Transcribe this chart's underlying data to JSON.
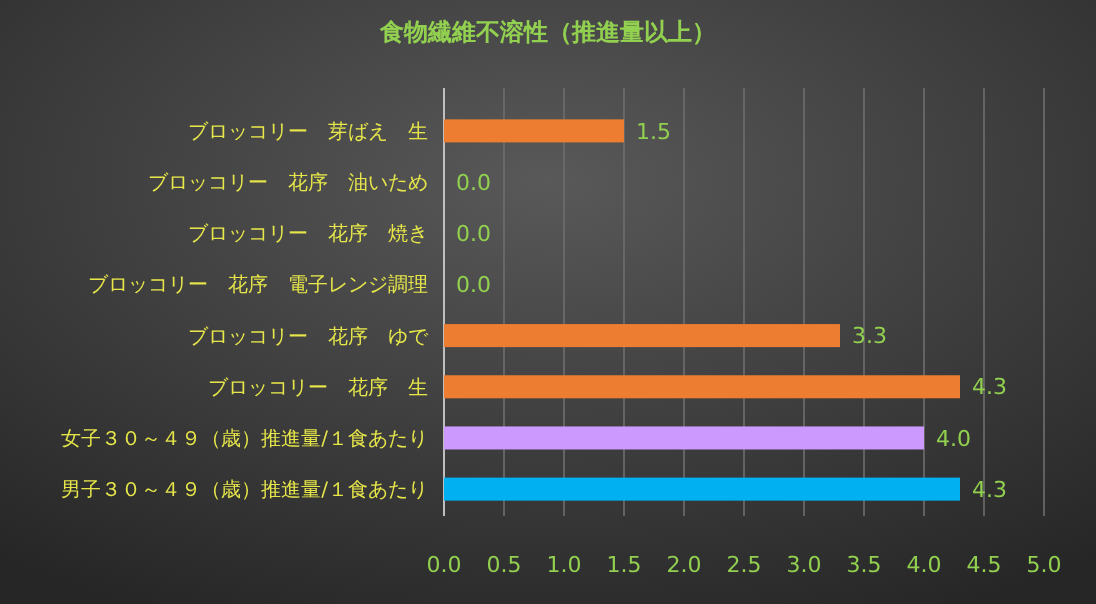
{
  "chart_data": {
    "type": "bar",
    "orientation": "horizontal",
    "title": "食物繊維不溶性（推進量以上）",
    "categories": [
      "ブロッコリー　芽ばえ　生",
      "ブロッコリー　花序　油いため",
      "ブロッコリー　花序　焼き",
      "ブロッコリー　花序　電子レンジ調理",
      "ブロッコリー　花序　ゆで",
      "ブロッコリー　花序　生",
      "女子３０～４９（歳）推進量/１食あたり",
      "男子３０～４９（歳）推進量/１食あたり"
    ],
    "values": [
      1.5,
      0,
      0,
      0,
      3.3,
      4.3,
      4.0,
      4.3
    ],
    "colors": [
      "#ed7d31",
      "#ed7d31",
      "#ed7d31",
      "#ed7d31",
      "#ed7d31",
      "#ed7d31",
      "#cc99ff",
      "#00b0f0"
    ],
    "value_labels": [
      "1.5",
      "0.0",
      "0.0",
      "0.0",
      "3.3",
      "4.3",
      "4.0",
      "4.3"
    ],
    "xlim": [
      0,
      5
    ],
    "xticks": [
      {
        "value": 0,
        "label": "0.0"
      },
      {
        "value": 0.5,
        "label": "0.5"
      },
      {
        "value": 1,
        "label": "1.0"
      },
      {
        "value": 1.5,
        "label": "1.5"
      },
      {
        "value": 2,
        "label": "2.0"
      },
      {
        "value": 2.5,
        "label": "2.5"
      },
      {
        "value": 3,
        "label": "3.0"
      },
      {
        "value": 3.5,
        "label": "3.5"
      },
      {
        "value": 4,
        "label": "4.0"
      },
      {
        "value": 4.5,
        "label": "4.5"
      },
      {
        "value": 5,
        "label": "5.0"
      }
    ],
    "grid": "x"
  }
}
